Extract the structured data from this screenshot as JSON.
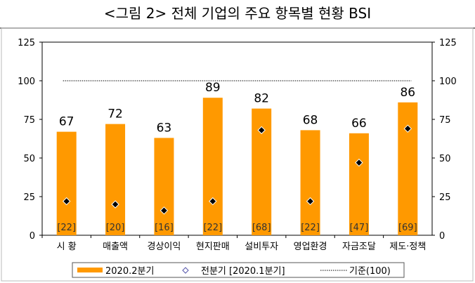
{
  "chart_data": {
    "type": "bar",
    "title": "<그림 2> 전체 기업의 주요 항목별 현황 BSI",
    "categories": [
      "시 황",
      "매출액",
      "경상이익",
      "현지판매",
      "설비투자",
      "영업환경",
      "자금조달",
      "제도·정책"
    ],
    "series": [
      {
        "name": "2020.2분기",
        "type": "bar",
        "values": [
          67,
          72,
          63,
          89,
          82,
          68,
          66,
          86
        ],
        "color": "#FF9900"
      },
      {
        "name": "전분기 [2020.1분기]",
        "type": "scatter",
        "marker": "diamond",
        "values": [
          22,
          20,
          16,
          22,
          68,
          22,
          47,
          69
        ],
        "color": "#000000"
      }
    ],
    "reference_line": {
      "name": "기준(100)",
      "value": 100,
      "style": "dotted"
    },
    "ylim": [
      0,
      125
    ],
    "yticks": [
      0,
      25,
      50,
      75,
      100,
      125
    ],
    "secondary_y": true,
    "grid": false,
    "legend": "bottom"
  }
}
